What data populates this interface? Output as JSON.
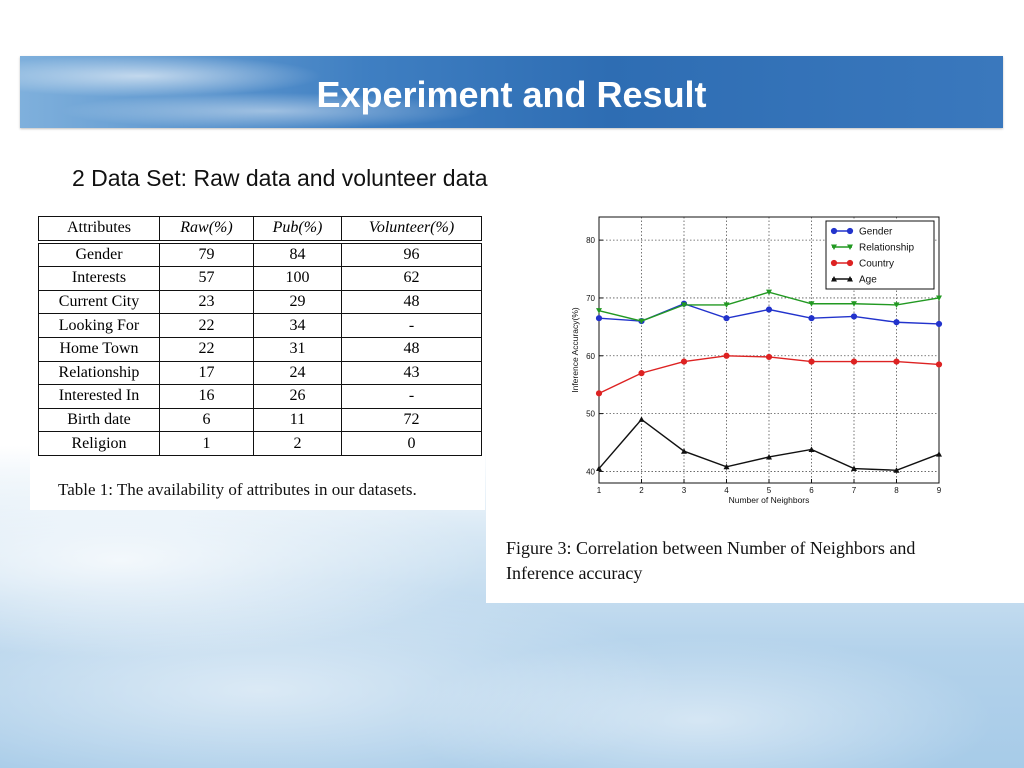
{
  "slide": {
    "title": "Experiment and Result",
    "subtitle": "2 Data Set: Raw data and volunteer data"
  },
  "table": {
    "headers": [
      "Attributes",
      "Raw(%)",
      "Pub(%)",
      "Volunteer(%)"
    ],
    "rows": [
      [
        "Gender",
        "79",
        "84",
        "96"
      ],
      [
        "Interests",
        "57",
        "100",
        "62"
      ],
      [
        "Current City",
        "23",
        "29",
        "48"
      ],
      [
        "Looking For",
        "22",
        "34",
        "-"
      ],
      [
        "Home Town",
        "22",
        "31",
        "48"
      ],
      [
        "Relationship",
        "17",
        "24",
        "43"
      ],
      [
        "Interested In",
        "16",
        "26",
        "-"
      ],
      [
        "Birth date",
        "6",
        "11",
        "72"
      ],
      [
        "Religion",
        "1",
        "2",
        "0"
      ]
    ],
    "caption": "Table 1: The availability of attributes in our datasets."
  },
  "figure": {
    "caption_line1": "Figure 3:  Correlation between Number of Neighbors and",
    "caption_line2": "Inference accuracy"
  },
  "chart_data": {
    "type": "line",
    "title": "",
    "xlabel": "Number of Neighbors",
    "ylabel": "Inference Accuracy(%)",
    "x": [
      1,
      2,
      3,
      4,
      5,
      6,
      7,
      8,
      9
    ],
    "xlim": [
      1,
      9
    ],
    "ylim": [
      38,
      84
    ],
    "yticks": [
      40,
      50,
      60,
      70,
      80
    ],
    "grid": true,
    "legend_position": "top-right",
    "series": [
      {
        "name": "Gender",
        "color": "#2233cc",
        "marker": "circle",
        "values": [
          66.5,
          66,
          69,
          66.5,
          68,
          66.5,
          66.8,
          65.8,
          65.5
        ]
      },
      {
        "name": "Relationship",
        "color": "#229922",
        "marker": "triangle-down",
        "values": [
          67.8,
          66,
          68.8,
          68.8,
          71,
          69,
          69,
          68.8,
          70
        ]
      },
      {
        "name": "Country",
        "color": "#dd2222",
        "marker": "circle",
        "values": [
          53.5,
          57,
          59,
          60,
          59.8,
          59,
          59,
          59,
          58.5
        ]
      },
      {
        "name": "Age",
        "color": "#111111",
        "marker": "triangle-up",
        "values": [
          40.5,
          49,
          43.5,
          40.8,
          42.5,
          43.8,
          40.5,
          40.2,
          43
        ]
      }
    ]
  }
}
